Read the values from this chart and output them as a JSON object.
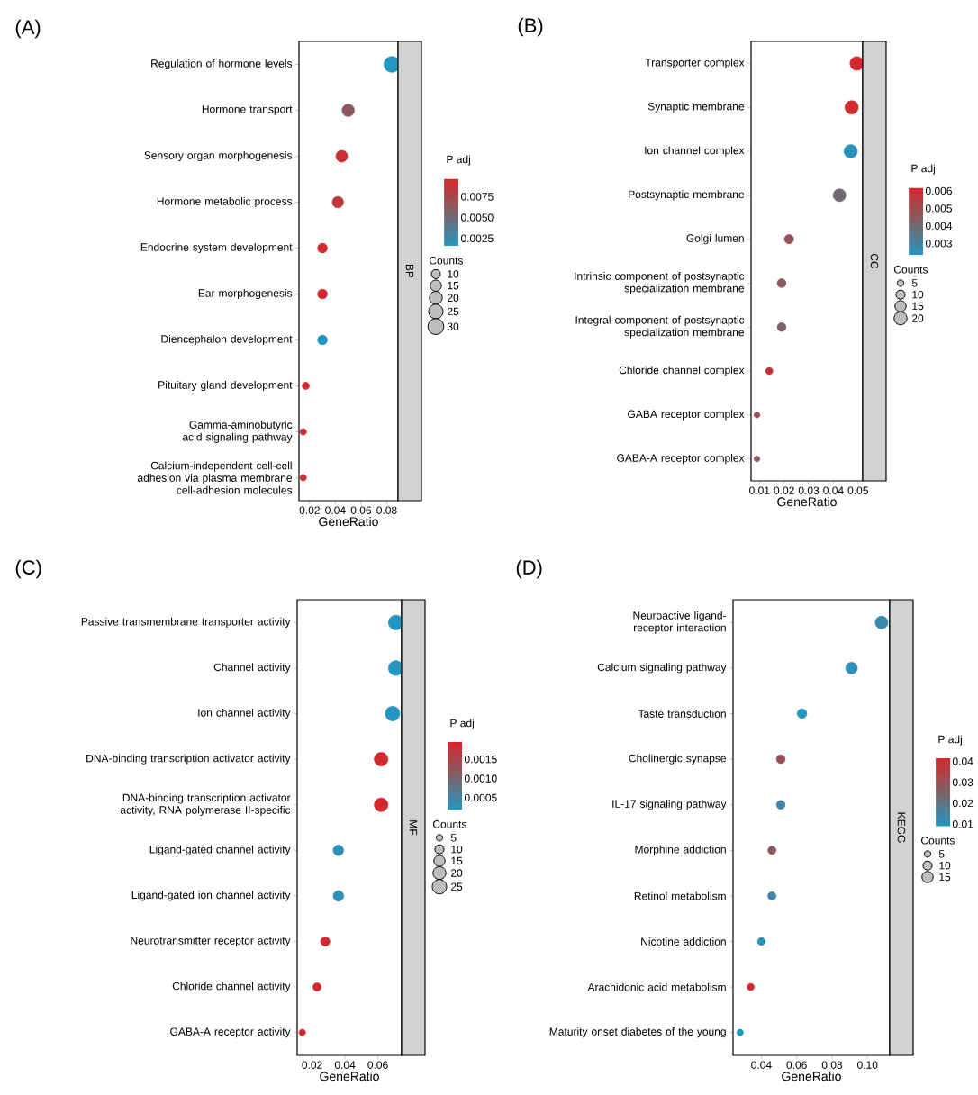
{
  "chart_data": [
    {
      "type": "bubble",
      "title": "(A)",
      "orientation": "horizontal",
      "marker": "circle",
      "xlabel": "GeneRatio",
      "clabel": "P adj",
      "legend_title": "Counts",
      "annotations": [
        "BP"
      ],
      "categories": [
        "Regulation of hormone levels",
        "Hormone transport",
        "Sensory organ morphogenesis",
        "Hormone metabolic process",
        "Endocrine system development",
        "Ear morphogenesis",
        "Diencephalon development",
        "Pituitary gland development",
        "Gamma-aminobutyric acid signaling pathway",
        "Calcium-independent cell-cell adhesion via plasma membrane cell-adhesion molecules"
      ],
      "values": [
        0.084,
        0.05,
        0.045,
        0.042,
        0.03,
        0.03,
        0.03,
        0.017,
        0.015,
        0.015
      ],
      "sizes": [
        30,
        18,
        16,
        15,
        11,
        11,
        11,
        6,
        5,
        5
      ],
      "cvalues": [
        0.0016,
        0.0062,
        0.009,
        0.0085,
        0.0095,
        0.0095,
        0.0016,
        0.0095,
        0.009,
        0.0088
      ],
      "xlim": [
        0.0117,
        0.0888
      ],
      "xticks": [
        0.02,
        0.04,
        0.06,
        0.08
      ],
      "clim": [
        0.0015,
        0.0097
      ],
      "cticks": [
        0.0025,
        {
          "value": 0.005,
          "label": "0.0050"
        },
        0.0075
      ],
      "size_legend": [
        10,
        15,
        20,
        25,
        30
      ]
    },
    {
      "type": "bubble",
      "title": "(B)",
      "orientation": "horizontal",
      "marker": "circle",
      "xlabel": "GeneRatio",
      "clabel": "P adj",
      "legend_title": "Counts",
      "annotations": [
        "CC"
      ],
      "categories": [
        "Transporter complex",
        "Synaptic membrane",
        "Ion channel complex",
        "Postsynaptic membrane",
        "Golgi lumen",
        "Intrinsic component of postsynaptic specialization membrane",
        "Integral component of postsynaptic specialization membrane",
        "Chloride channel complex",
        "GABA receptor complex",
        "GABA-A receptor complex"
      ],
      "values": [
        0.0495,
        0.0474,
        0.047,
        0.0425,
        0.022,
        0.019,
        0.019,
        0.014,
        0.009,
        0.009
      ],
      "sizes": [
        22,
        21,
        21,
        19,
        10,
        9,
        9,
        6,
        4,
        4
      ],
      "cvalues": [
        0.0061,
        0.006,
        0.0025,
        0.004,
        0.0048,
        0.0045,
        0.0043,
        0.0058,
        0.0048,
        0.0045
      ],
      "xlim": [
        0.0066,
        0.0519
      ],
      "xticks": [
        0.01,
        0.02,
        0.03,
        0.04,
        0.05
      ],
      "clim": [
        0.0023,
        0.0062
      ],
      "cticks": [
        0.003,
        0.004,
        0.005,
        0.006
      ],
      "size_legend": [
        5,
        10,
        15,
        20
      ]
    },
    {
      "type": "bubble",
      "title": "(C)",
      "orientation": "horizontal",
      "marker": "circle",
      "xlabel": "GeneRatio",
      "clabel": "P adj",
      "legend_title": "Counts",
      "annotations": [
        "MF"
      ],
      "categories": [
        "Passive transmembrane transporter activity",
        "Channel activity",
        "Ion channel activity",
        "DNA-binding transcription activator activity",
        "DNA-binding transcription activator activity, RNA polymerase II-specific",
        "Ligand-gated channel activity",
        "Ligand-gated ion channel activity",
        "Neurotransmitter receptor activity",
        "Chloride channel activity",
        "GABA-A receptor activity"
      ],
      "values": [
        0.071,
        0.071,
        0.069,
        0.062,
        0.062,
        0.036,
        0.036,
        0.028,
        0.023,
        0.014
      ],
      "sizes": [
        26,
        26,
        25,
        22,
        22,
        13,
        13,
        10,
        8,
        5
      ],
      "cvalues": [
        0.0002,
        0.0002,
        0.0002,
        0.0019,
        0.0019,
        0.0003,
        0.0003,
        0.0019,
        0.0019,
        0.0019
      ],
      "xlim": [
        0.0109,
        0.0745
      ],
      "xticks": [
        0.02,
        0.04,
        0.06
      ],
      "clim": [
        0.00017,
        0.00195
      ],
      "cticks": [
        0.0005,
        {
          "value": 0.001,
          "label": "0.0010"
        },
        0.0015
      ],
      "size_legend": [
        5,
        10,
        15,
        20,
        25
      ]
    },
    {
      "type": "bubble",
      "title": "(D)",
      "orientation": "horizontal",
      "marker": "circle",
      "xlabel": "GeneRatio",
      "clabel": "P adj",
      "legend_title": "Counts",
      "annotations": [
        "KEGG"
      ],
      "categories": [
        "Neuroactive ligand-receptor interaction",
        "Calcium signaling pathway",
        "Taste transduction",
        "Cholinergic synapse",
        "IL-17 signaling pathway",
        "Morphine addiction",
        "Retinol metabolism",
        "Nicotine addiction",
        "Arachidonic acid metabolism",
        "Maturity onset diabetes of the young"
      ],
      "values": [
        0.108,
        0.091,
        0.063,
        0.051,
        0.051,
        0.046,
        0.046,
        0.04,
        0.034,
        0.028
      ],
      "sizes": [
        19,
        16,
        11,
        9,
        9,
        8,
        8,
        7,
        6,
        5
      ],
      "cvalues": [
        0.013,
        0.011,
        0.009,
        0.03,
        0.014,
        0.028,
        0.014,
        0.01,
        0.041,
        0.009
      ],
      "xlim": [
        0.024,
        0.1126
      ],
      "xticks": [
        0.04,
        0.06,
        0.08,
        {
          "value": 0.1,
          "label": "0.10"
        }
      ],
      "clim": [
        0.0088,
        0.0415
      ],
      "cticks": [
        0.01,
        0.02,
        0.03,
        0.04
      ],
      "size_legend": [
        5,
        10,
        15
      ]
    }
  ]
}
